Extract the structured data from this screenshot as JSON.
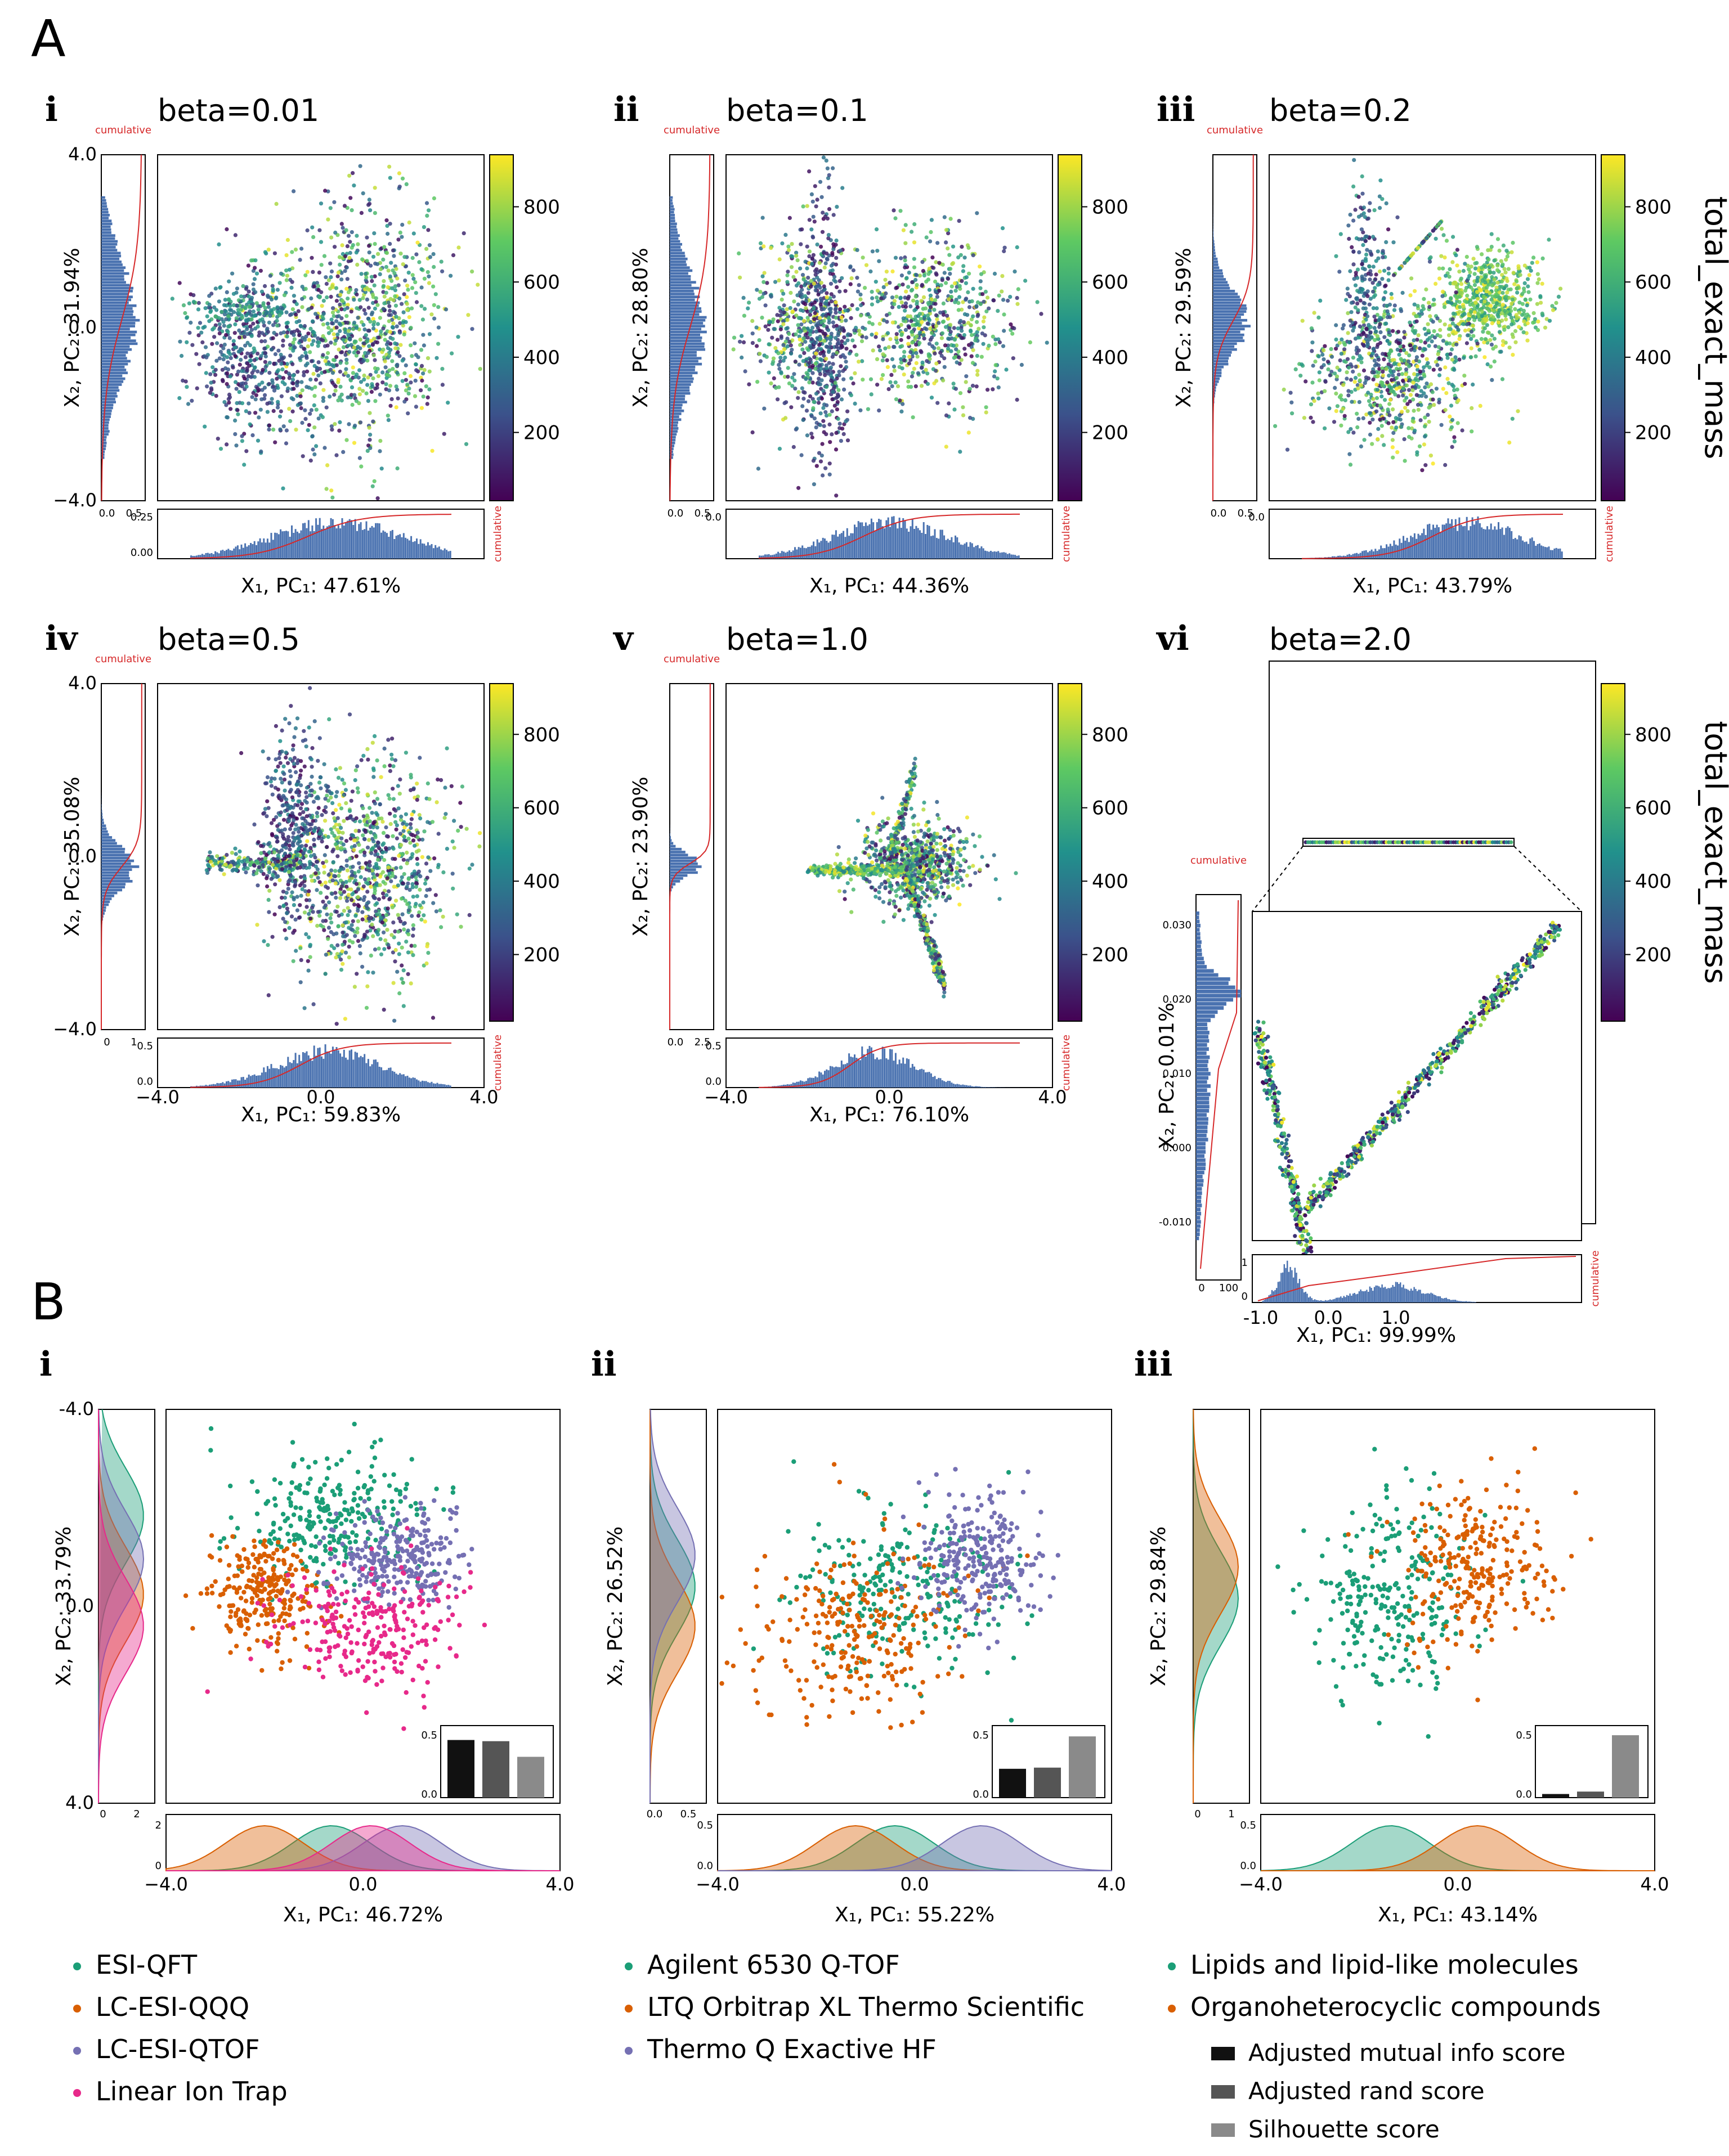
{
  "colors": {
    "frame": "#000000",
    "hist_fill": "#4a72b0",
    "cumulative_line": "#d62728",
    "viridis_low": "#440154",
    "viridis_mid": "#21918c",
    "viridis_high": "#fde725",
    "src_green": "#1b9e77",
    "src_orange": "#d95f02",
    "src_purple": "#7570b3",
    "src_pink": "#e7298a",
    "bar_ami": "#111111",
    "bar_rand": "#555555",
    "bar_sil": "#8a8a8a"
  },
  "panelA": {
    "label": "A",
    "colorbar": {
      "label": "total_exact_mass",
      "ticks": [
        "200",
        "400",
        "600",
        "800"
      ]
    },
    "cumulative_label": "cumulative",
    "subplots": [
      {
        "roman": "i",
        "beta_label": "beta=0.01",
        "ylab": "X₂, PC₂: 31.94%",
        "xlab": "X₁, PC₁: 47.61%",
        "yticks": [
          "4.0",
          "0.0",
          "−4.0"
        ],
        "xticks": [],
        "side_ticks": [
          "0.0",
          "0.5"
        ],
        "bottom_ticks": [
          "0.25",
          "0.00"
        ]
      },
      {
        "roman": "ii",
        "beta_label": "beta=0.1",
        "ylab": "X₂, PC₂: 28.80%",
        "xlab": "X₁, PC₁: 44.36%",
        "yticks": [],
        "xticks": [],
        "side_ticks": [
          "0.0",
          "0.5"
        ],
        "bottom_ticks": [
          "0.0"
        ]
      },
      {
        "roman": "iii",
        "beta_label": "beta=0.2",
        "ylab": "X₂, PC₂: 29.59%",
        "xlab": "X₁, PC₁: 43.79%",
        "yticks": [],
        "xticks": [],
        "side_ticks": [
          "0.0",
          "0.5"
        ],
        "bottom_ticks": [
          "0.0"
        ]
      },
      {
        "roman": "iv",
        "beta_label": "beta=0.5",
        "ylab": "X₂, PC₂: 35.08%",
        "xlab": "X₁, PC₁: 59.83%",
        "yticks": [
          "4.0",
          "0.0",
          "−4.0"
        ],
        "xticks": [
          "−4.0",
          "0.0",
          "4.0"
        ],
        "side_ticks": [
          "0",
          "1"
        ],
        "bottom_ticks": [
          "0.5",
          "0.0"
        ]
      },
      {
        "roman": "v",
        "beta_label": "beta=1.0",
        "ylab": "X₂, PC₂: 23.90%",
        "xlab": "X₁, PC₁: 76.10%",
        "yticks": [],
        "xticks": [
          "−4.0",
          "0.0",
          "4.0"
        ],
        "side_ticks": [
          "0.0",
          "2.5"
        ],
        "bottom_ticks": [
          "0.5",
          "0.0"
        ]
      },
      {
        "roman": "vi",
        "beta_label": "beta=2.0",
        "ylab": "X₂, PC₂: 0.01%",
        "xlab": "X₁, PC₁: 99.99%",
        "yticks": [
          "0.030",
          "0.020",
          "0.010",
          "0.000",
          "-0.010"
        ],
        "xticks": [
          "-1.0",
          "0.0",
          "1.0"
        ],
        "side_ticks": [
          "0",
          "100"
        ],
        "bottom_ticks": [
          "1",
          "0"
        ]
      }
    ]
  },
  "panelB": {
    "label": "B",
    "inset_ticks": [
      "0.5",
      "0.0"
    ],
    "subplots": [
      {
        "roman": "i",
        "ylab": "X₂, PC₂: 33.79%",
        "xlab": "X₁, PC₁: 46.72%",
        "yticks": [
          "-4.0",
          "0.0",
          "4.0"
        ],
        "xticks": [
          "−4.0",
          "0.0",
          "4.0"
        ],
        "side_ticks": [
          "0",
          "2"
        ],
        "bottom_ticks": [
          "2",
          "0"
        ],
        "bars": [
          0.48,
          0.47,
          0.34
        ],
        "legend": [
          {
            "label": "ESI-QFT",
            "color": "#1b9e77"
          },
          {
            "label": "LC-ESI-QQQ",
            "color": "#d95f02"
          },
          {
            "label": "LC-ESI-QTOF",
            "color": "#7570b3"
          },
          {
            "label": "Linear Ion Trap",
            "color": "#e7298a"
          }
        ]
      },
      {
        "roman": "ii",
        "ylab": "X₂, PC₂: 26.52%",
        "xlab": "X₁, PC₁: 55.22%",
        "yticks": [],
        "xticks": [
          "−4.0",
          "0.0",
          "4.0"
        ],
        "side_ticks": [
          "0.0",
          "0.5"
        ],
        "bottom_ticks": [
          "0.5",
          "0.0"
        ],
        "bars": [
          0.24,
          0.25,
          0.51
        ],
        "legend": [
          {
            "label": "Agilent 6530 Q-TOF",
            "color": "#1b9e77"
          },
          {
            "label": "LTQ Orbitrap XL Thermo Scientific",
            "color": "#d95f02"
          },
          {
            "label": "Thermo Q Exactive HF",
            "color": "#7570b3"
          }
        ]
      },
      {
        "roman": "iii",
        "ylab": "X₂, PC₂: 29.84%",
        "xlab": "X₁, PC₁: 43.14%",
        "yticks": [],
        "xticks": [
          "−4.0",
          "0.0",
          "4.0"
        ],
        "side_ticks": [
          "0",
          "1"
        ],
        "bottom_ticks": [
          "0.5",
          "0.0"
        ],
        "bars": [
          0.03,
          0.05,
          0.52
        ],
        "legend": [
          {
            "label": "Lipids and lipid-like molecules",
            "color": "#1b9e77"
          },
          {
            "label": "Organoheterocyclic compounds",
            "color": "#d95f02"
          }
        ]
      }
    ],
    "score_legend": [
      {
        "label": "Adjusted mutual info score",
        "color": "#111111"
      },
      {
        "label": "Adjusted rand score",
        "color": "#555555"
      },
      {
        "label": "Silhouette score",
        "color": "#8a8a8a"
      }
    ]
  },
  "chart_data": [
    {
      "type": "scatter",
      "title": "beta=0.01",
      "xlabel": "X₁, PC₁: 47.61%",
      "ylabel": "X₂, PC₂: 31.94%",
      "ylim": [
        -4.0,
        4.0
      ],
      "color_label": "total_exact_mass",
      "color_range": [
        50,
        980
      ]
    },
    {
      "type": "scatter",
      "title": "beta=0.1",
      "xlabel": "X₁, PC₁: 44.36%",
      "ylabel": "X₂, PC₂: 28.80%",
      "color_label": "total_exact_mass",
      "color_range": [
        50,
        980
      ]
    },
    {
      "type": "scatter",
      "title": "beta=0.2",
      "xlabel": "X₁, PC₁: 43.79%",
      "ylabel": "X₂, PC₂: 29.59%",
      "color_label": "total_exact_mass",
      "color_range": [
        50,
        980
      ]
    },
    {
      "type": "scatter",
      "title": "beta=0.5",
      "xlabel": "X₁, PC₁: 59.83%",
      "ylabel": "X₂, PC₂: 35.08%",
      "xlim": [
        -4.0,
        4.0
      ],
      "ylim": [
        -4.0,
        4.0
      ],
      "color_label": "total_exact_mass",
      "color_range": [
        50,
        980
      ]
    },
    {
      "type": "scatter",
      "title": "beta=1.0",
      "xlabel": "X₁, PC₁: 76.10%",
      "ylabel": "X₂, PC₂: 23.90%",
      "xlim": [
        -4.0,
        4.0
      ],
      "color_label": "total_exact_mass",
      "color_range": [
        50,
        980
      ]
    },
    {
      "type": "scatter",
      "title": "beta=2.0",
      "xlabel": "X₁, PC₁: 99.99%",
      "ylabel": "X₂, PC₂: 0.01%",
      "inset_ylim": [
        -0.01,
        0.03
      ],
      "color_label": "total_exact_mass",
      "color_range": [
        50,
        980
      ]
    },
    {
      "type": "scatter",
      "title": "B i",
      "xlabel": "X₁, PC₁: 46.72%",
      "ylabel": "X₂, PC₂: 33.79%",
      "xlim": [
        -4.0,
        4.0
      ],
      "ylim": [
        -4.0,
        4.0
      ],
      "series": [
        {
          "name": "ESI-QFT"
        },
        {
          "name": "LC-ESI-QQQ"
        },
        {
          "name": "LC-ESI-QTOF"
        },
        {
          "name": "Linear Ion Trap"
        }
      ],
      "inset_bar": {
        "categories": [
          "Adjusted mutual info score",
          "Adjusted rand score",
          "Silhouette score"
        ],
        "values": [
          0.48,
          0.47,
          0.34
        ]
      }
    },
    {
      "type": "scatter",
      "title": "B ii",
      "xlabel": "X₁, PC₁: 55.22%",
      "ylabel": "X₂, PC₂: 26.52%",
      "xlim": [
        -4.0,
        4.0
      ],
      "series": [
        {
          "name": "Agilent 6530 Q-TOF"
        },
        {
          "name": "LTQ Orbitrap XL Thermo Scientific"
        },
        {
          "name": "Thermo Q Exactive HF"
        }
      ],
      "inset_bar": {
        "categories": [
          "Adjusted mutual info score",
          "Adjusted rand score",
          "Silhouette score"
        ],
        "values": [
          0.24,
          0.25,
          0.51
        ]
      }
    },
    {
      "type": "scatter",
      "title": "B iii",
      "xlabel": "X₁, PC₁: 43.14%",
      "ylabel": "X₂, PC₂: 29.84%",
      "xlim": [
        -4.0,
        4.0
      ],
      "series": [
        {
          "name": "Lipids and lipid-like molecules"
        },
        {
          "name": "Organoheterocyclic compounds"
        }
      ],
      "inset_bar": {
        "categories": [
          "Adjusted mutual info score",
          "Adjusted rand score",
          "Silhouette score"
        ],
        "values": [
          0.03,
          0.05,
          0.52
        ]
      }
    }
  ]
}
